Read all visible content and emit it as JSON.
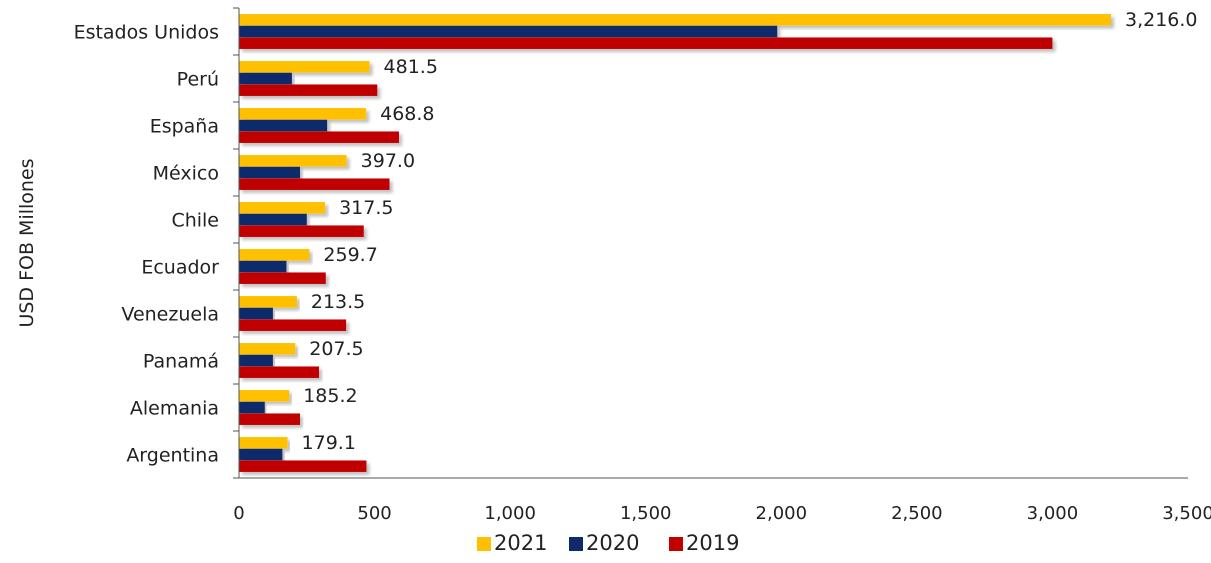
{
  "chart_data": {
    "type": "bar",
    "orientation": "horizontal",
    "categories": [
      "Estados Unidos",
      "Perú",
      "España",
      "México",
      "Chile",
      "Ecuador",
      "Venezuela",
      "Panamá",
      "Alemania",
      "Argentina"
    ],
    "series": [
      {
        "name": "2021",
        "color": "#FFC000",
        "values": [
          3216.0,
          481.5,
          468.8,
          397.0,
          317.5,
          259.7,
          213.5,
          207.5,
          185.2,
          179.1
        ]
      },
      {
        "name": "2020",
        "color": "#0E2A6B",
        "values": [
          1985,
          195,
          325,
          225,
          250,
          175,
          125,
          125,
          95,
          160
        ]
      },
      {
        "name": "2019",
        "color": "#C00000",
        "values": [
          3000,
          510,
          590,
          555,
          460,
          320,
          395,
          295,
          225,
          470
        ]
      }
    ],
    "data_labels": [
      "3,216.0",
      "481.5",
      "468.8",
      "397.0",
      "317.5",
      "259.7",
      "213.5",
      "207.5",
      "185.2",
      "179.1"
    ],
    "xlim": [
      0,
      3500
    ],
    "xticks": [
      0,
      500,
      1000,
      1500,
      2000,
      2500,
      3000,
      3500
    ],
    "xtick_labels": [
      "0",
      "500",
      "1,000",
      "1,500",
      "2,000",
      "2,500",
      "3,000",
      "3,500"
    ],
    "ylabel": "USD FOB Millones",
    "xlabel": "",
    "grid": false,
    "legend_position": "bottom"
  }
}
